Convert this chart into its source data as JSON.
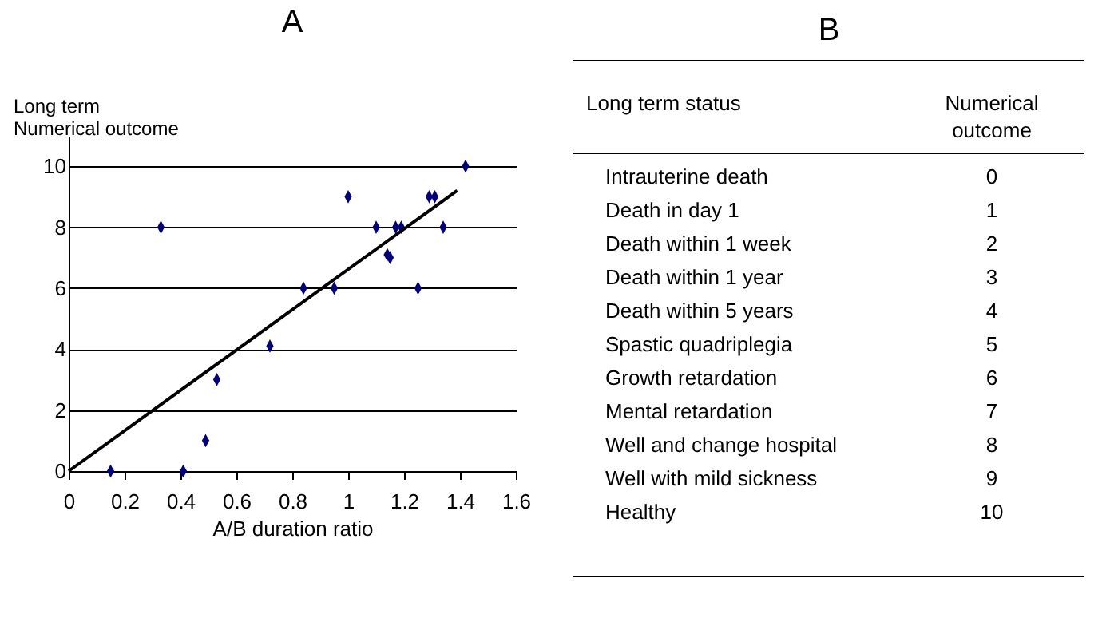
{
  "chart_data": [
    {
      "type": "scatter",
      "title": "A",
      "xlabel": "A/B duration ratio",
      "ylabel": "Long term\nNumerical outcome",
      "xlim": [
        0,
        1.6
      ],
      "xticks": [
        0,
        0.2,
        0.4,
        0.6,
        0.8,
        1,
        1.2,
        1.4,
        1.6
      ],
      "ylim": [
        0,
        11
      ],
      "yticks": [
        0,
        2,
        4,
        6,
        8,
        10
      ],
      "grid": "y",
      "series": [
        {
          "type": "scatter",
          "color": "#00007f",
          "marker": "diamond",
          "x": [
            0.15,
            0.33,
            0.41,
            0.49,
            0.53,
            0.72,
            0.84,
            0.95,
            1.0,
            1.1,
            1.14,
            1.15,
            1.17,
            1.19,
            1.25,
            1.29,
            1.31,
            1.34,
            1.42
          ],
          "values": [
            0,
            8,
            0,
            1,
            3,
            4.1,
            6,
            6,
            9,
            8,
            7.1,
            7,
            8,
            8,
            6,
            9,
            9,
            8,
            10
          ]
        },
        {
          "type": "line",
          "color": "#000000",
          "marker": "none",
          "line_style": "solid",
          "x": [
            0,
            1.39
          ],
          "values": [
            0,
            9.2
          ]
        }
      ]
    },
    {
      "type": "other",
      "title": "B",
      "xlabel": "Long term status",
      "ylabel": "Numerical\noutcome",
      "data_labels": true,
      "categories": [
        "Intrauterine death",
        "Death in day 1",
        "Death within 1 week",
        "Death within 1 year",
        "Death within 5 years",
        "Spastic quadriplegia",
        "Growth retardation",
        "Mental retardation",
        "Well and change hospital",
        "Well with mild sickness",
        "Healthy"
      ],
      "values": [
        0,
        1,
        2,
        3,
        4,
        5,
        6,
        7,
        8,
        9,
        10
      ]
    }
  ]
}
